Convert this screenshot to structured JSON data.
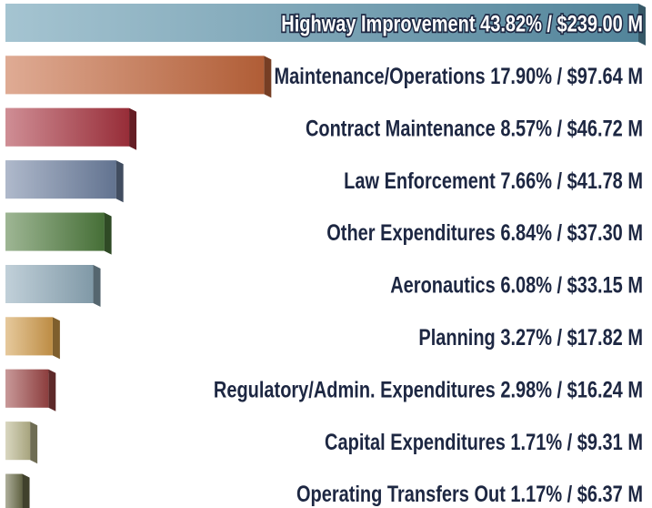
{
  "chart_data": {
    "type": "bar",
    "orientation": "horizontal",
    "categories": [
      "Highway Improvement",
      "Maintenance/Operations",
      "Contract Maintenance",
      "Law Enforcement",
      "Other Expenditures",
      "Aeronautics",
      "Planning",
      "Regulatory/Admin. Expenditures",
      "Capital Expenditures",
      "Operating Transfers Out"
    ],
    "values": [
      239.0,
      97.64,
      46.72,
      41.78,
      37.3,
      33.15,
      17.82,
      16.24,
      9.31,
      6.37
    ],
    "value_labels": [
      "43.82% / $239.00 M",
      "17.90% / $97.64 M",
      "8.57% / $46.72 M",
      "7.66% / $41.78 M",
      "6.84% / $37.30 M",
      "6.08% / $33.15 M",
      "3.27% / $17.82 M",
      "2.98% / $16.24 M",
      "1.71% / $9.31 M",
      "1.17% / $6.37 M"
    ],
    "colors": [
      "#5b93ab",
      "#c4673c",
      "#a8323e",
      "#6d80a0",
      "#4e7b3d",
      "#8eaab9",
      "#d29c4b",
      "#9b4545",
      "#b9b68c",
      "#6b6d49"
    ]
  }
}
